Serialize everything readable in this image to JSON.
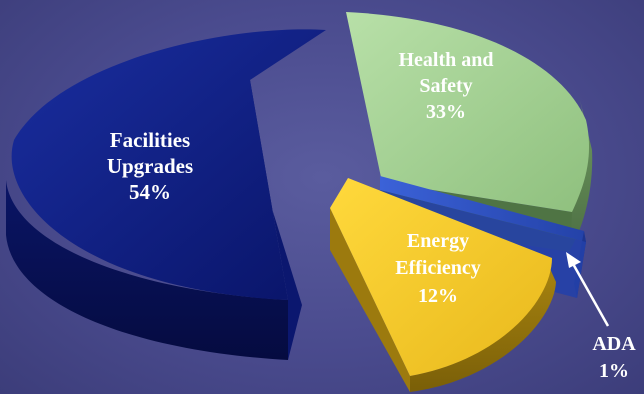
{
  "chart_data": {
    "type": "pie",
    "style": "3d-exploded",
    "slices": [
      {
        "line1": "Facilities",
        "line2": "Upgrades",
        "pct_label": "54%",
        "value": 54,
        "color": "#0d1a7e"
      },
      {
        "line1": "Health and",
        "line2": "Safety",
        "pct_label": "33%",
        "value": 33,
        "color": "#a6d496"
      },
      {
        "line1": "ADA",
        "line2": "",
        "pct_label": "1%",
        "value": 1,
        "color": "#2f54c8"
      },
      {
        "line1": "Energy",
        "line2": "Efficiency",
        "pct_label": "12%",
        "value": 12,
        "color": "#f6cc2c"
      }
    ],
    "title": "",
    "legend": "none"
  }
}
